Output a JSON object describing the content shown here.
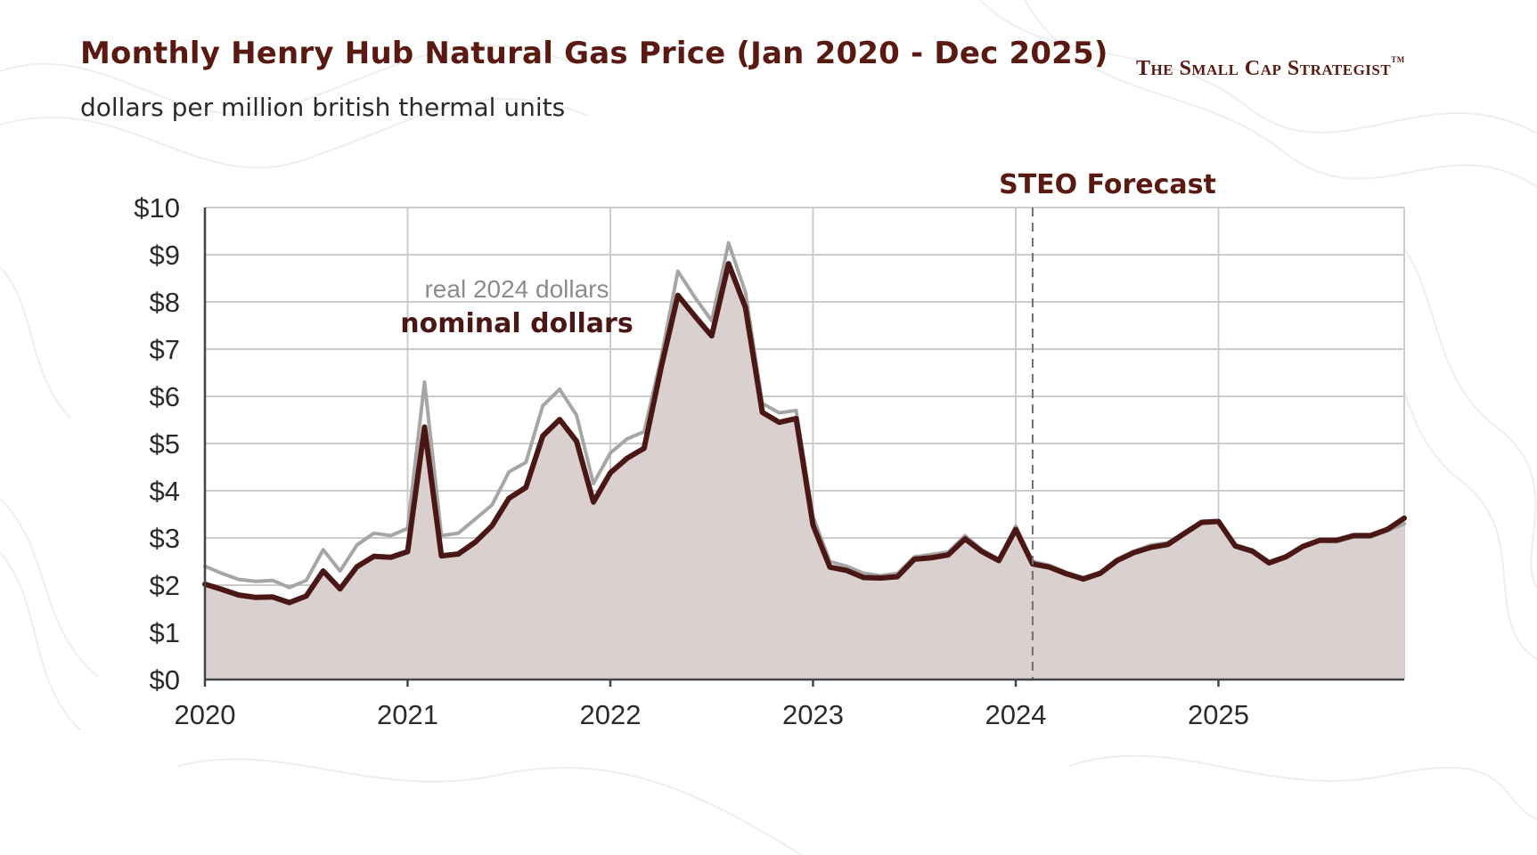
{
  "header": {
    "title": "Monthly Henry Hub Natural Gas Price (Jan 2020 - Dec 2025)",
    "subtitle": "dollars per million british thermal units",
    "brand": "The Small Cap Strategist",
    "brand_mark": "TM"
  },
  "colors": {
    "nominal": "#4a1714",
    "real": "#a6a6a6",
    "area": "#d9d0cf",
    "title": "#5a1a12",
    "grid": "#cccccc"
  },
  "chart_data": {
    "type": "line",
    "title": "Monthly Henry Hub Natural Gas Price (Jan 2020 - Dec 2025)",
    "ylabel": "dollars per million british thermal units",
    "xlabel": "",
    "x_start": "2020-01",
    "x_ticks": [
      "2020",
      "2021",
      "2022",
      "2023",
      "2024",
      "2025"
    ],
    "y_ticks": [
      "$0",
      "$1",
      "$2",
      "$3",
      "$4",
      "$5",
      "$6",
      "$7",
      "$8",
      "$9",
      "$10"
    ],
    "ylim": [
      0,
      10
    ],
    "grid": true,
    "forecast_start": "2024-02",
    "forecast_label": "STEO Forecast",
    "series": [
      {
        "name": "real 2024 dollars",
        "values": [
          2.4,
          2.25,
          2.12,
          2.08,
          2.1,
          1.95,
          2.1,
          2.75,
          2.3,
          2.85,
          3.1,
          3.05,
          3.2,
          6.3,
          3.05,
          3.1,
          3.4,
          3.7,
          4.4,
          4.6,
          5.8,
          6.15,
          5.6,
          4.15,
          4.8,
          5.1,
          5.25,
          6.8,
          8.65,
          8.1,
          7.6,
          9.25,
          8.2,
          5.85,
          5.65,
          5.7,
          3.45,
          2.5,
          2.4,
          2.25,
          2.2,
          2.25,
          2.6,
          2.65,
          2.7,
          3.05,
          2.75,
          2.55,
          3.25,
          2.5,
          2.42,
          2.27,
          2.16,
          2.27,
          2.55,
          2.72,
          2.85,
          2.9,
          3.12,
          3.35,
          3.37,
          2.85,
          2.75,
          2.5,
          2.62,
          2.82,
          2.93,
          2.92,
          3.02,
          3.02,
          3.15,
          3.3
        ]
      },
      {
        "name": "nominal dollars",
        "values": [
          2.02,
          1.91,
          1.79,
          1.74,
          1.75,
          1.63,
          1.77,
          2.3,
          1.92,
          2.39,
          2.61,
          2.59,
          2.71,
          5.35,
          2.62,
          2.66,
          2.91,
          3.26,
          3.84,
          4.07,
          5.16,
          5.51,
          5.05,
          3.76,
          4.38,
          4.69,
          4.9,
          6.6,
          8.14,
          7.7,
          7.28,
          8.81,
          7.88,
          5.66,
          5.45,
          5.53,
          3.27,
          2.38,
          2.31,
          2.16,
          2.15,
          2.18,
          2.55,
          2.58,
          2.64,
          2.98,
          2.71,
          2.52,
          3.18,
          2.45,
          2.38,
          2.24,
          2.13,
          2.25,
          2.52,
          2.69,
          2.8,
          2.86,
          3.1,
          3.33,
          3.35,
          2.83,
          2.72,
          2.47,
          2.6,
          2.82,
          2.95,
          2.95,
          3.05,
          3.05,
          3.18,
          3.42
        ]
      }
    ],
    "annotations": [
      "real 2024 dollars",
      "nominal dollars"
    ]
  }
}
